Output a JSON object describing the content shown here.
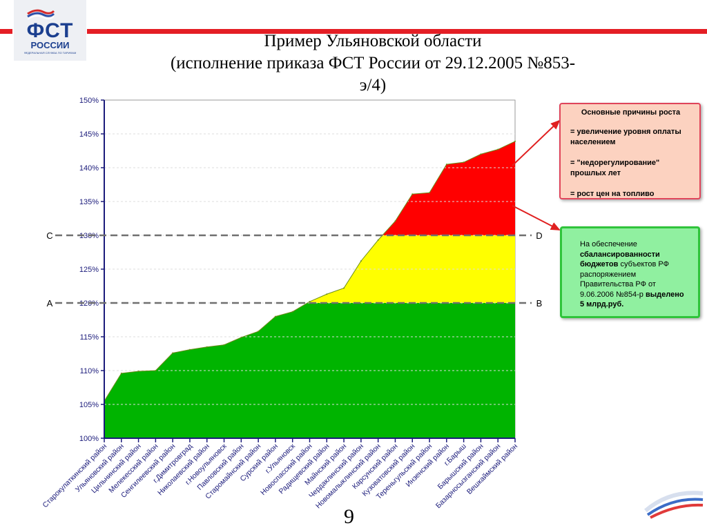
{
  "logo": {
    "main": "ФСТ",
    "sub": "РОССИИ",
    "tagline": "ФЕДЕРАЛЬНАЯ СЛУЖБА ПО ТАРИФАМ"
  },
  "title": {
    "line1": "Пример Ульяновской области",
    "line2": "(исполнение приказа ФСТ России от 29.12.2005 №853-э/4)"
  },
  "page_number": "9",
  "colors": {
    "green": "#00b400",
    "yellow": "#ffff00",
    "red": "#ff0000",
    "accent_red": "#e41e25",
    "axis_blue": "#1a1a7a"
  },
  "chart_data": {
    "type": "area",
    "title": "",
    "xlabel": "",
    "ylabel": "",
    "ylim": [
      100,
      150
    ],
    "yticks": [
      "100%",
      "105%",
      "110%",
      "115%",
      "120%",
      "125%",
      "130%",
      "135%",
      "140%",
      "145%",
      "150%"
    ],
    "grid": true,
    "categories": [
      "Старокулаткинский район",
      "Ульяновский район",
      "Цильнинский район",
      "Мелекесский район",
      "Сенгилеевский район",
      "г.Димитровград",
      "Николаевский район",
      "г.Новоульяновск",
      "Павловский район",
      "Старомайнский район",
      "Сурский район",
      "г.Ульяновск",
      "Новоспасский район",
      "Радищевский район",
      "Майнский район",
      "Чердаклинский район",
      "Новомалыклинский район",
      "Карсунский район",
      "Кузоватовский район",
      "Тереньгульский район",
      "Инзенский район",
      "г.Барыш",
      "Барышский район",
      "Базарносызганский район",
      "Вешкаймский район"
    ],
    "values": [
      105.5,
      109.6,
      109.9,
      110.0,
      112.6,
      113.1,
      113.5,
      113.8,
      114.9,
      115.8,
      118.0,
      118.7,
      120.2,
      121.3,
      122.2,
      126.2,
      129.3,
      132.1,
      136.1,
      136.3,
      140.5,
      140.8,
      142.0,
      142.7,
      143.9
    ],
    "bands": [
      {
        "from": 100,
        "to": 120,
        "color": "#00b400"
      },
      {
        "from": 120,
        "to": 130,
        "color": "#ffff00"
      },
      {
        "from": 130,
        "to": 150,
        "color": "#ff0000"
      }
    ],
    "reference_lines": [
      {
        "y": 120,
        "left_label": "A",
        "right_label": "B"
      },
      {
        "y": 130,
        "left_label": "C",
        "right_label": "D"
      }
    ]
  },
  "box_causes": {
    "header": "Основные причины роста",
    "items": [
      "= увеличение уровня оплаты населением",
      "= \"недорегулирование\" прошлых лет",
      "= рост цен на топливо"
    ]
  },
  "box_funds": {
    "t1": "На обеспечение ",
    "t2": "сбалансированности бюджетов",
    "t3": " субъектов РФ распоряжением Правительства РФ от 9.06.2006 №854-р ",
    "t4": "выделено 5 млрд.руб."
  }
}
